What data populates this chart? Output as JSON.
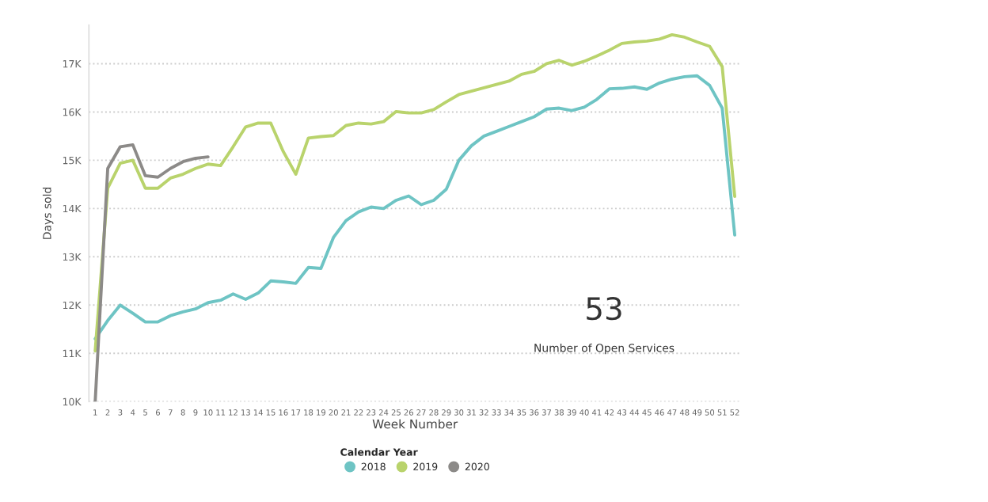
{
  "chart_data": {
    "type": "line",
    "xlabel": "Week Number",
    "ylabel": "Days sold",
    "legend_title": "Calendar Year",
    "legend": "bottom",
    "grid": "y",
    "categories": [
      "1",
      "2",
      "3",
      "4",
      "5",
      "6",
      "7",
      "8",
      "9",
      "10",
      "11",
      "12",
      "13",
      "14",
      "15",
      "16",
      "17",
      "18",
      "19",
      "20",
      "21",
      "22",
      "23",
      "24",
      "25",
      "26",
      "27",
      "28",
      "29",
      "30",
      "31",
      "32",
      "33",
      "34",
      "35",
      "36",
      "37",
      "38",
      "39",
      "40",
      "41",
      "42",
      "43",
      "44",
      "45",
      "46",
      "47",
      "48",
      "49",
      "50",
      "51",
      "52"
    ],
    "ylim": [
      10,
      17.8
    ],
    "yticks": [
      {
        "value": 10,
        "label": "10K"
      },
      {
        "value": 11,
        "label": "11K"
      },
      {
        "value": 12,
        "label": "12K"
      },
      {
        "value": 13,
        "label": "13K"
      },
      {
        "value": 14,
        "label": "14K"
      },
      {
        "value": 15,
        "label": "15K"
      },
      {
        "value": 16,
        "label": "16K"
      },
      {
        "value": 17,
        "label": "17K"
      }
    ],
    "series": [
      {
        "name": "2018",
        "color": "#6ec4c4",
        "values": [
          11.3,
          11.68,
          12.0,
          11.83,
          11.65,
          11.65,
          11.78,
          11.86,
          11.92,
          12.05,
          12.1,
          12.23,
          12.12,
          12.25,
          12.5,
          12.48,
          12.45,
          12.78,
          12.76,
          13.4,
          13.75,
          13.93,
          14.03,
          14.0,
          14.17,
          14.26,
          14.08,
          14.17,
          14.4,
          15.0,
          15.3,
          15.5,
          15.6,
          15.7,
          15.8,
          15.9,
          16.06,
          16.08,
          16.03,
          16.1,
          16.26,
          16.48,
          16.49,
          16.52,
          16.47,
          16.6,
          16.68,
          16.73,
          16.75,
          16.55,
          16.08,
          13.45
        ]
      },
      {
        "name": "2019",
        "color": "#b9d36c",
        "values": [
          11.05,
          14.42,
          14.94,
          15.0,
          14.42,
          14.42,
          14.63,
          14.71,
          14.83,
          14.92,
          14.89,
          15.28,
          15.69,
          15.77,
          15.77,
          15.18,
          14.71,
          15.46,
          15.49,
          15.51,
          15.72,
          15.77,
          15.75,
          15.8,
          16.01,
          15.98,
          15.98,
          16.05,
          16.21,
          16.36,
          16.43,
          16.5,
          16.57,
          16.64,
          16.78,
          16.84,
          17.0,
          17.07,
          16.97,
          17.05,
          17.16,
          17.28,
          17.42,
          17.45,
          17.47,
          17.51,
          17.6,
          17.55,
          17.45,
          17.36,
          16.94,
          14.25
        ]
      },
      {
        "name": "2020",
        "color": "#8c8a88",
        "values": [
          10.0,
          14.83,
          15.28,
          15.32,
          14.68,
          14.65,
          14.83,
          14.97,
          15.04,
          15.07,
          null,
          null,
          null,
          null,
          null,
          null,
          null,
          null,
          null,
          null,
          null,
          null,
          null,
          null,
          null,
          null,
          null,
          null,
          null,
          null,
          null,
          null,
          null,
          null,
          null,
          null,
          null,
          null,
          null,
          null,
          null,
          null,
          null,
          null,
          null,
          null,
          null,
          null,
          null,
          null,
          null,
          null
        ]
      }
    ],
    "annotations": [
      "53",
      "Number of Open Services"
    ]
  }
}
